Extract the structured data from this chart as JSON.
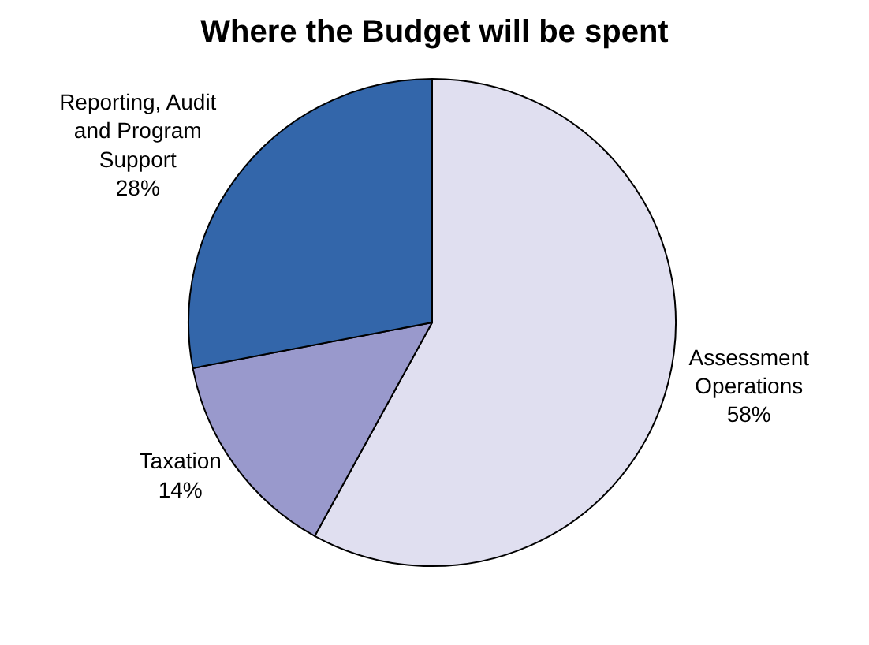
{
  "chart_data": {
    "type": "pie",
    "title": "Where the Budget will be spent",
    "categories": [
      "Assessment Operations",
      "Taxation",
      "Reporting, Audit and Program Support"
    ],
    "values": [
      58,
      14,
      28
    ],
    "value_labels": [
      "58%",
      "14%",
      "28%"
    ],
    "colors": [
      "#e0dff0",
      "#9999cc",
      "#3366aa"
    ],
    "legend": false
  }
}
